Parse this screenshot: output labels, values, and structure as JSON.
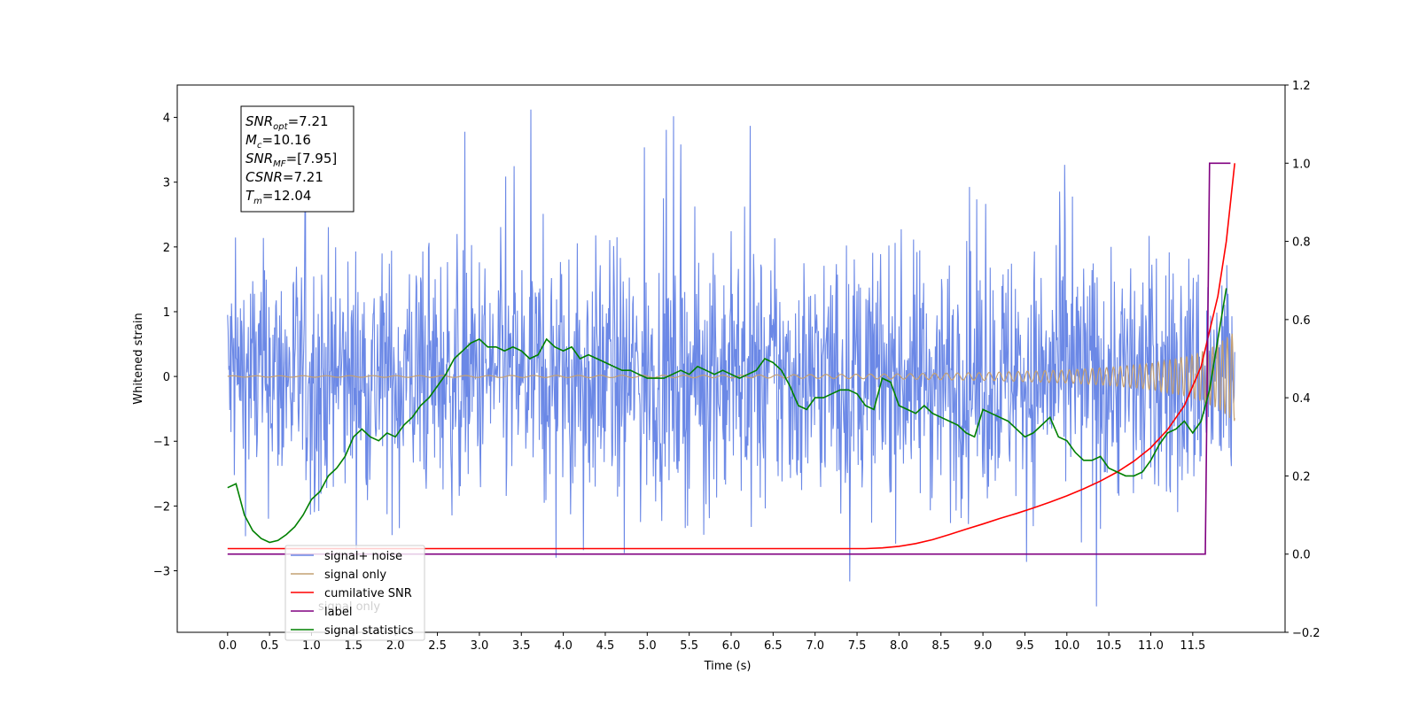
{
  "chart_data": {
    "type": "line",
    "xlabel": "Time (s)",
    "ylabel": "Whitened strain",
    "xlim": [
      -0.6,
      12.6
    ],
    "ylim": [
      -3.95,
      4.5
    ],
    "y2lim": [
      -0.2,
      1.2
    ],
    "x_ticks": [
      0.0,
      0.5,
      1.0,
      1.5,
      2.0,
      2.5,
      3.0,
      3.5,
      4.0,
      4.5,
      5.0,
      5.5,
      6.0,
      6.5,
      7.0,
      7.5,
      8.0,
      8.5,
      9.0,
      9.5,
      10.0,
      10.5,
      11.0,
      11.5
    ],
    "x_tick_labels": [
      "0.0",
      "0.5",
      "1.0",
      "1.5",
      "2.0",
      "2.5",
      "3.0",
      "3.5",
      "4.0",
      "4.5",
      "5.0",
      "5.5",
      "6.0",
      "6.5",
      "7.0",
      "7.5",
      "8.0",
      "8.5",
      "9.0",
      "9.5",
      "10.0",
      "10.5",
      "11.0",
      "11.5"
    ],
    "y_ticks": [
      -3,
      -2,
      -1,
      0,
      1,
      2,
      3,
      4
    ],
    "y_tick_labels": [
      "−3",
      "−2",
      "−1",
      "0",
      "1",
      "2",
      "3",
      "4"
    ],
    "y2_ticks": [
      -0.2,
      0.0,
      0.2,
      0.4,
      0.6,
      0.8,
      1.0,
      1.2
    ],
    "y2_tick_labels": [
      "−0.2",
      "0.0",
      "0.2",
      "0.4",
      "0.6",
      "0.8",
      "1.0",
      "1.2"
    ],
    "legend": {
      "placement": "lower-left",
      "entries": [
        "signal+ noise",
        "signal only",
        "cumilative SNR",
        "label",
        "signal statistics"
      ],
      "ghost_text": [
        "signal only"
      ]
    },
    "annotation": [
      {
        "base": "SNR",
        "sub": "opt",
        "value": "=7.21"
      },
      {
        "base": "M",
        "sub": "c",
        "value": "=10.16"
      },
      {
        "base": "SNR",
        "sub": "MF",
        "value": "=[7.95]"
      },
      {
        "base": "CSNR",
        "sub": "",
        "value": "=7.21"
      },
      {
        "base": "T",
        "sub": "m",
        "value": "=12.04"
      }
    ],
    "series": [
      {
        "name": "signal+ noise",
        "axis": "left",
        "color": "#6b88e6",
        "kind": "noise",
        "t_range": [
          0.0,
          12.0
        ],
        "samples": 1800,
        "approx_center": 0.0,
        "approx_band": [
          -1.8,
          1.8
        ],
        "approx_extremes": [
          -3.55,
          4.12
        ]
      },
      {
        "name": "signal only",
        "axis": "left",
        "color": "#c4a072",
        "kind": "chirp",
        "t_range": [
          0.0,
          12.0
        ],
        "envelope": [
          [
            0.0,
            0.01
          ],
          [
            6.0,
            0.02
          ],
          [
            8.0,
            0.04
          ],
          [
            9.0,
            0.06
          ],
          [
            10.0,
            0.1
          ],
          [
            10.5,
            0.14
          ],
          [
            11.0,
            0.2
          ],
          [
            11.5,
            0.33
          ],
          [
            11.8,
            0.5
          ],
          [
            12.0,
            0.7
          ]
        ]
      },
      {
        "name": "cumilative SNR",
        "axis": "right",
        "color": "#ff0000",
        "x": [
          0.0,
          7.6,
          7.8,
          8.0,
          8.2,
          8.4,
          8.6,
          8.8,
          9.0,
          9.2,
          9.4,
          9.6,
          9.8,
          10.0,
          10.2,
          10.4,
          10.6,
          10.8,
          11.0,
          11.2,
          11.4,
          11.6,
          11.8,
          11.9,
          12.0
        ],
        "y": [
          0.014,
          0.014,
          0.016,
          0.02,
          0.027,
          0.037,
          0.05,
          0.064,
          0.077,
          0.091,
          0.104,
          0.118,
          0.133,
          0.149,
          0.167,
          0.187,
          0.21,
          0.238,
          0.272,
          0.318,
          0.38,
          0.48,
          0.66,
          0.8,
          1.0
        ]
      },
      {
        "name": "label",
        "axis": "right",
        "color": "#800080",
        "x": [
          0.0,
          11.65,
          11.7,
          11.95
        ],
        "y": [
          0.0,
          0.0,
          1.0,
          1.0
        ]
      },
      {
        "name": "signal statistics",
        "axis": "right",
        "color": "#008000",
        "x": [
          0.0,
          0.1,
          0.2,
          0.3,
          0.4,
          0.5,
          0.6,
          0.7,
          0.8,
          0.9,
          1.0,
          1.1,
          1.2,
          1.3,
          1.4,
          1.5,
          1.6,
          1.7,
          1.8,
          1.9,
          2.0,
          2.1,
          2.2,
          2.3,
          2.4,
          2.5,
          2.6,
          2.7,
          2.8,
          2.9,
          3.0,
          3.1,
          3.2,
          3.3,
          3.4,
          3.5,
          3.6,
          3.7,
          3.8,
          3.9,
          4.0,
          4.1,
          4.2,
          4.3,
          4.4,
          4.5,
          4.6,
          4.7,
          4.8,
          4.9,
          5.0,
          5.1,
          5.2,
          5.3,
          5.4,
          5.5,
          5.6,
          5.7,
          5.8,
          5.9,
          6.0,
          6.1,
          6.2,
          6.3,
          6.4,
          6.5,
          6.6,
          6.7,
          6.8,
          6.9,
          7.0,
          7.1,
          7.2,
          7.3,
          7.4,
          7.5,
          7.6,
          7.7,
          7.8,
          7.9,
          8.0,
          8.1,
          8.2,
          8.3,
          8.4,
          8.5,
          8.6,
          8.7,
          8.8,
          8.9,
          9.0,
          9.1,
          9.2,
          9.3,
          9.4,
          9.5,
          9.6,
          9.7,
          9.8,
          9.9,
          10.0,
          10.1,
          10.2,
          10.3,
          10.4,
          10.5,
          10.6,
          10.7,
          10.8,
          10.9,
          11.0,
          11.1,
          11.2,
          11.3,
          11.4,
          11.5,
          11.6,
          11.7,
          11.8,
          11.9
        ],
        "y": [
          0.17,
          0.18,
          0.1,
          0.06,
          0.04,
          0.03,
          0.035,
          0.05,
          0.07,
          0.1,
          0.14,
          0.16,
          0.2,
          0.22,
          0.25,
          0.3,
          0.32,
          0.3,
          0.29,
          0.31,
          0.3,
          0.33,
          0.35,
          0.38,
          0.4,
          0.43,
          0.46,
          0.5,
          0.52,
          0.54,
          0.55,
          0.53,
          0.53,
          0.52,
          0.53,
          0.52,
          0.5,
          0.51,
          0.55,
          0.53,
          0.52,
          0.53,
          0.5,
          0.51,
          0.5,
          0.49,
          0.48,
          0.47,
          0.47,
          0.46,
          0.45,
          0.45,
          0.45,
          0.46,
          0.47,
          0.46,
          0.48,
          0.47,
          0.46,
          0.47,
          0.46,
          0.45,
          0.46,
          0.47,
          0.5,
          0.49,
          0.47,
          0.43,
          0.38,
          0.37,
          0.4,
          0.4,
          0.41,
          0.42,
          0.42,
          0.41,
          0.38,
          0.37,
          0.45,
          0.44,
          0.38,
          0.37,
          0.36,
          0.38,
          0.36,
          0.35,
          0.34,
          0.33,
          0.31,
          0.3,
          0.37,
          0.36,
          0.35,
          0.34,
          0.32,
          0.3,
          0.31,
          0.33,
          0.35,
          0.3,
          0.29,
          0.26,
          0.24,
          0.24,
          0.25,
          0.22,
          0.21,
          0.2,
          0.2,
          0.21,
          0.24,
          0.28,
          0.31,
          0.32,
          0.34,
          0.31,
          0.34,
          0.42,
          0.55,
          0.68
        ]
      }
    ]
  }
}
